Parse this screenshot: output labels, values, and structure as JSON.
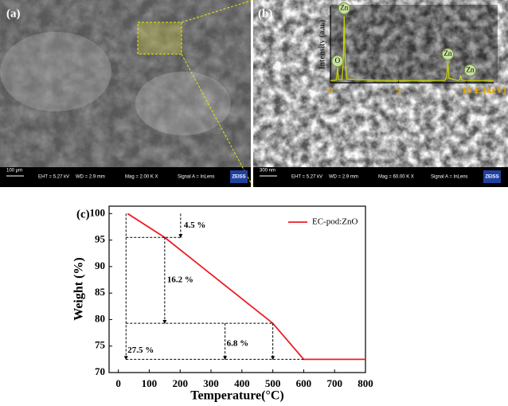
{
  "panels": {
    "a": {
      "label": "(a)",
      "info": [
        "100 μm",
        "EHT = 5.27 kV",
        "WD = 2.9 mm",
        "Mag = 2.00 K X",
        "Signal A = InLens",
        "ZEISS"
      ]
    },
    "b": {
      "label": "(b)",
      "info": [
        "300 nm",
        "EHT = 5.27 kV",
        "WD = 2.9 mm",
        "Mag = 60.00 K X",
        "Signal A = InLens",
        "ZEISS"
      ]
    }
  },
  "chart_data": [
    {
      "type": "line",
      "label": "(c)",
      "x_label": "Temperature(°C)",
      "y_label": "Weight (%)",
      "x": [
        30,
        150,
        500,
        600,
        800
      ],
      "series": [
        {
          "name": "EC-pod:ZnO",
          "color": "#ee1c25",
          "values": [
            100,
            95.5,
            79.3,
            72.5,
            72.5
          ]
        }
      ],
      "annotations": [
        "4.5 %",
        "16.2 %",
        "6.8 %",
        "27.5 %"
      ],
      "xlim": [
        -30,
        800
      ],
      "xticks": [
        0,
        100,
        200,
        300,
        400,
        500,
        600,
        700,
        800
      ],
      "ylim": [
        70,
        101.4
      ],
      "yticks": [
        70,
        75,
        80,
        85,
        90,
        95,
        100
      ],
      "legend": "upper right"
    },
    {
      "type": "line",
      "x_label": "E (keV)",
      "y_label": "Intensity (a.u.)",
      "x": [
        0,
        0.3,
        0.45,
        0.52,
        0.6,
        0.85,
        0.95,
        1.01,
        1.08,
        1.2,
        2,
        4,
        6,
        8.4,
        8.55,
        8.63,
        8.72,
        9.4,
        9.52,
        9.57,
        9.65,
        9.8,
        12
      ],
      "series": [
        {
          "color": "#c8d400",
          "values": [
            3,
            3,
            4,
            20,
            4,
            4,
            30,
            87,
            30,
            5,
            4,
            3,
            3,
            3,
            8,
            27,
            6,
            3,
            5,
            10,
            4,
            3,
            3
          ]
        }
      ],
      "annotations": [
        "Zn",
        "O",
        "Zn",
        "Zn"
      ],
      "xlim": [
        0,
        12
      ],
      "xticks": [
        0,
        5,
        10
      ],
      "ylim": [
        0,
        100
      ]
    }
  ]
}
